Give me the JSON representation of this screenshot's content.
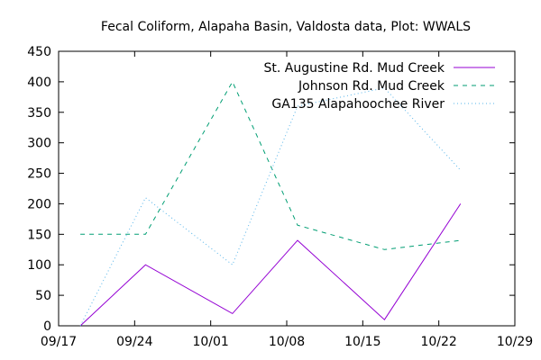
{
  "chart_data": {
    "type": "line",
    "title": "Fecal Coliform, Alapaha Basin, Valdosta data, Plot: WWALS",
    "xlabel": "",
    "ylabel": "",
    "x_axis": {
      "type": "date",
      "range": [
        "2015-09-17",
        "2015-10-29"
      ],
      "ticks": [
        {
          "date": "2015-09-17",
          "label": "09/17"
        },
        {
          "date": "2015-09-24",
          "label": "09/24"
        },
        {
          "date": "2015-10-01",
          "label": "10/01"
        },
        {
          "date": "2015-10-08",
          "label": "10/08"
        },
        {
          "date": "2015-10-15",
          "label": "10/15"
        },
        {
          "date": "2015-10-22",
          "label": "10/22"
        },
        {
          "date": "2015-10-29",
          "label": "10/29"
        }
      ]
    },
    "y_axis": {
      "range": [
        0,
        450
      ],
      "ticks": [
        0,
        50,
        100,
        150,
        200,
        250,
        300,
        350,
        400,
        450
      ]
    },
    "grid": false,
    "legend_position": "top-right",
    "series": [
      {
        "name": "St. Augustine Rd. Mud Creek",
        "color": "#9400d3",
        "dash": "solid",
        "points": [
          {
            "x": "2015-09-19",
            "y": 0
          },
          {
            "x": "2015-09-25",
            "y": 100
          },
          {
            "x": "2015-10-03",
            "y": 20
          },
          {
            "x": "2015-10-09",
            "y": 140
          },
          {
            "x": "2015-10-17",
            "y": 10
          },
          {
            "x": "2015-10-24",
            "y": 200
          }
        ]
      },
      {
        "name": "Johnson Rd. Mud Creek",
        "color": "#009e73",
        "dash": "dashed",
        "points": [
          {
            "x": "2015-09-19",
            "y": 150
          },
          {
            "x": "2015-09-25",
            "y": 150
          },
          {
            "x": "2015-10-03",
            "y": 400
          },
          {
            "x": "2015-10-09",
            "y": 165
          },
          {
            "x": "2015-10-17",
            "y": 125
          },
          {
            "x": "2015-10-24",
            "y": 140
          }
        ]
      },
      {
        "name": "GA135 Alapahoochee River",
        "color": "#56b4e9",
        "dash": "dotted",
        "points": [
          {
            "x": "2015-09-19",
            "y": 0
          },
          {
            "x": "2015-09-25",
            "y": 210
          },
          {
            "x": "2015-10-03",
            "y": 100
          },
          {
            "x": "2015-10-09",
            "y": 360
          },
          {
            "x": "2015-10-17",
            "y": 390
          },
          {
            "x": "2015-10-24",
            "y": 255
          }
        ]
      }
    ]
  }
}
